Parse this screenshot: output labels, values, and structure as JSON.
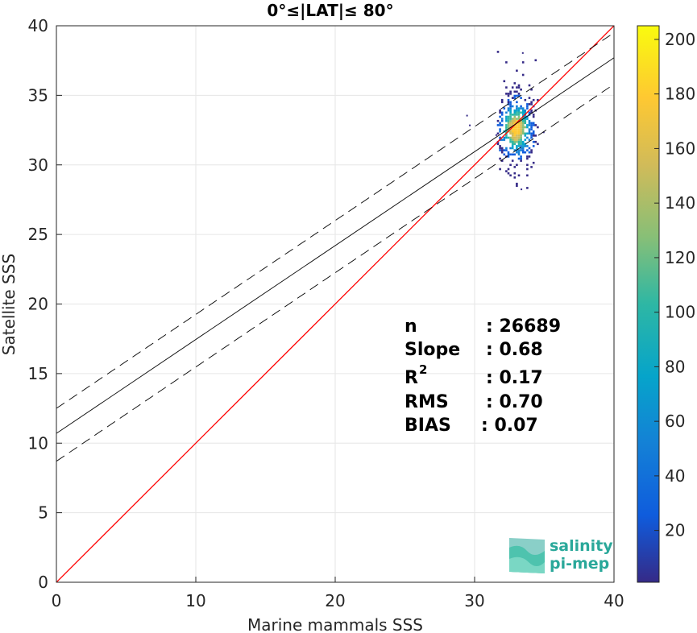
{
  "chart_data": {
    "type": "scatter",
    "title": "0°≤|LAT|≤ 80°",
    "xlabel": "Marine mammals SSS",
    "ylabel": "Satellite SSS",
    "xlim": [
      0,
      40
    ],
    "ylim": [
      0,
      40
    ],
    "xticks": [
      0,
      10,
      20,
      30,
      40
    ],
    "yticks": [
      0,
      5,
      10,
      15,
      20,
      25,
      30,
      35,
      40
    ],
    "grid": true,
    "series": [
      {
        "kind": "identity_line",
        "color": "#ff0000",
        "x": [
          0,
          40
        ],
        "y": [
          0,
          40
        ]
      },
      {
        "kind": "regression_line",
        "color": "#000000",
        "x": [
          0,
          40
        ],
        "y": [
          10.7,
          37.7
        ]
      },
      {
        "kind": "upper_dashed_line",
        "color": "#000000",
        "x": [
          0,
          40
        ],
        "y": [
          12.5,
          39.5
        ]
      },
      {
        "kind": "lower_dashed_line",
        "color": "#000000",
        "x": [
          0,
          40
        ],
        "y": [
          8.7,
          35.8
        ]
      }
    ],
    "density_cluster": {
      "center": [
        32.9,
        32.7
      ],
      "x_range": [
        31.6,
        34.5
      ],
      "y_range": [
        28.0,
        38.2
      ],
      "peak_count": 205
    },
    "stats": [
      {
        "label": "n",
        "value": ": 26689"
      },
      {
        "label": "Slope",
        "value": ": 0.68"
      },
      {
        "label": "R",
        "sup": "2",
        "value": ": 0.17"
      },
      {
        "label": "RMS",
        "value": ": 0.70"
      },
      {
        "label": "BIAS",
        "value": ": 0.07"
      }
    ],
    "colorbar": {
      "range": [
        1,
        205
      ],
      "ticks": [
        20,
        40,
        60,
        80,
        100,
        120,
        140,
        160,
        180,
        200
      ],
      "colormap": "parula"
    }
  },
  "logo": {
    "line1": "salinity",
    "line2": "pi-mep",
    "color": "#2aa89a"
  }
}
